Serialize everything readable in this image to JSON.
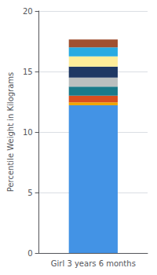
{
  "chart_data": {
    "type": "bar",
    "categories": [
      "Girl 3 years 6 months"
    ],
    "ylabel": "Percentile Weight in Kilograms",
    "stacked": true,
    "series": [
      {
        "color": "#4393E5",
        "values": [
          12.2
        ]
      },
      {
        "color": "#F0A500",
        "values": [
          0.25
        ]
      },
      {
        "color": "#D94E1F",
        "values": [
          0.55
        ]
      },
      {
        "color": "#1A7A8A",
        "values": [
          0.75
        ]
      },
      {
        "color": "#BBBFBF",
        "values": [
          0.75
        ]
      },
      {
        "color": "#1F3864",
        "values": [
          0.9
        ]
      },
      {
        "color": "#FFED99",
        "values": [
          0.85
        ]
      },
      {
        "color": "#29ABE2",
        "values": [
          0.75
        ]
      },
      {
        "color": "#A05030",
        "values": [
          0.65
        ]
      }
    ],
    "ylim": [
      0,
      20
    ],
    "yticks": [
      0,
      5,
      10,
      15,
      20
    ],
    "grid": true
  }
}
